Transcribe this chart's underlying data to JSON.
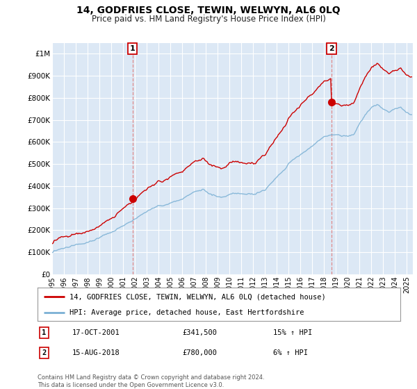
{
  "title": "14, GODFRIES CLOSE, TEWIN, WELWYN, AL6 0LQ",
  "subtitle": "Price paid vs. HM Land Registry's House Price Index (HPI)",
  "xlim_start": 1995.0,
  "xlim_end": 2025.5,
  "ylim_bottom": 0,
  "ylim_top": 1050000,
  "yticks": [
    0,
    100000,
    200000,
    300000,
    400000,
    500000,
    600000,
    700000,
    800000,
    900000,
    1000000
  ],
  "ytick_labels": [
    "£0",
    "£100K",
    "£200K",
    "£300K",
    "£400K",
    "£500K",
    "£600K",
    "£700K",
    "£800K",
    "£900K",
    "£1M"
  ],
  "xticks": [
    1995,
    1996,
    1997,
    1998,
    1999,
    2000,
    2001,
    2002,
    2003,
    2004,
    2005,
    2006,
    2007,
    2008,
    2009,
    2010,
    2011,
    2012,
    2013,
    2014,
    2015,
    2016,
    2017,
    2018,
    2019,
    2020,
    2021,
    2022,
    2023,
    2024,
    2025
  ],
  "sale1_x": 2001.79,
  "sale1_y": 341500,
  "sale1_label": "1",
  "sale1_date": "17-OCT-2001",
  "sale1_price": "£341,500",
  "sale1_hpi": "15% ↑ HPI",
  "sale2_x": 2018.62,
  "sale2_y": 780000,
  "sale2_label": "2",
  "sale2_date": "15-AUG-2018",
  "sale2_price": "£780,000",
  "sale2_hpi": "6% ↑ HPI",
  "red_color": "#cc0000",
  "blue_color": "#7ab0d4",
  "vline_color": "#e08080",
  "bg_color": "#ffffff",
  "plot_bg_color": "#dce8f5",
  "grid_color": "#ffffff",
  "legend_line1": "14, GODFRIES CLOSE, TEWIN, WELWYN, AL6 0LQ (detached house)",
  "legend_line2": "HPI: Average price, detached house, East Hertfordshire",
  "footnote": "Contains HM Land Registry data © Crown copyright and database right 2024.\nThis data is licensed under the Open Government Licence v3.0."
}
